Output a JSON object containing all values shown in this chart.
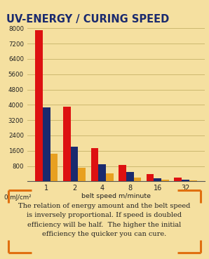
{
  "title": "UV-ENERGY / CURING SPEED",
  "categories": [
    "1",
    "2",
    "4",
    "8",
    "16",
    "32"
  ],
  "xlabel": "belt speed m/minute",
  "ylabel_label": "0 mJ/cm²",
  "yticks": [
    0,
    800,
    1600,
    2400,
    3200,
    4000,
    4800,
    5600,
    6400,
    7200,
    8000
  ],
  "ylim": [
    0,
    8400
  ],
  "bar_data": {
    "red": [
      7900,
      3900,
      1750,
      870,
      390,
      200
    ],
    "navy": [
      3850,
      1800,
      900,
      500,
      145,
      85
    ],
    "orange": [
      1450,
      700,
      400,
      180,
      70,
      50
    ]
  },
  "bar_colors": {
    "red": "#dd1111",
    "navy": "#1a2a6e",
    "orange": "#e8a020"
  },
  "bg_color": "#f5e0a0",
  "chart_bg": "#f5e0a0",
  "title_color": "#1a2a6e",
  "grid_color": "#ccb870",
  "annotation": "The relation of energy amount and the belt speed\nis inversely proportional. If speed is doubled\nefficiency will be half.  The higher the initial\nefficiency the quicker you can cure.",
  "annotation_box_color": "#e07010",
  "annotation_bg": "#ffffff",
  "annotation_text_color": "#222222"
}
